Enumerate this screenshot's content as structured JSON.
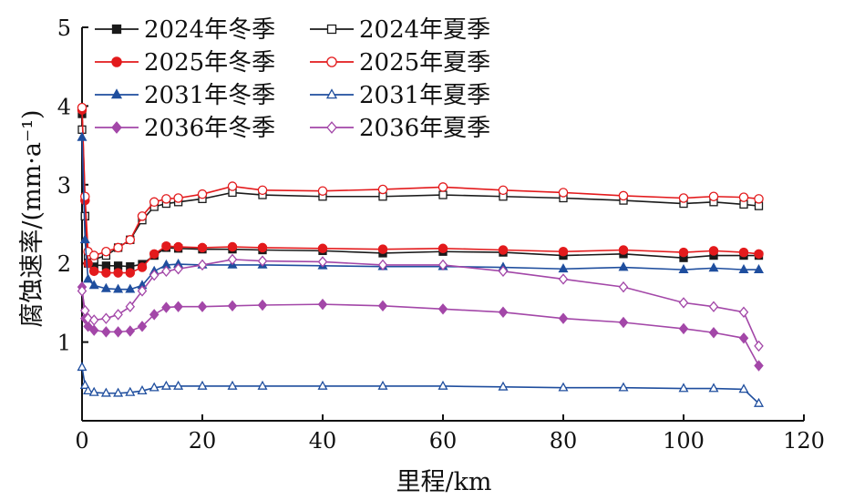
{
  "chart_data": {
    "type": "line",
    "xlabel": "里程/km",
    "ylabel": "腐蚀速率/(mm·a⁻¹)",
    "xlim": [
      0,
      120
    ],
    "ylim": [
      0,
      5
    ],
    "xticks": [
      "0",
      "20",
      "40",
      "60",
      "80",
      "100",
      "120"
    ],
    "yticks": [
      "1",
      "2",
      "3",
      "4",
      "5"
    ],
    "grid": false,
    "legend_position": "top-left",
    "series": [
      {
        "name": "2024年冬季",
        "color": "#1a1a1a",
        "marker": "square",
        "filled": true,
        "x": [
          0,
          0.5,
          1,
          2,
          4,
          6,
          8,
          10,
          12,
          14,
          16,
          20,
          25,
          30,
          40,
          50,
          60,
          70,
          80,
          90,
          100,
          105,
          110,
          112.5
        ],
        "y": [
          3.9,
          2.6,
          2.0,
          1.98,
          1.97,
          1.97,
          1.96,
          1.99,
          2.1,
          2.2,
          2.19,
          2.18,
          2.18,
          2.17,
          2.16,
          2.13,
          2.15,
          2.14,
          2.1,
          2.12,
          2.07,
          2.1,
          2.1,
          2.1
        ]
      },
      {
        "name": "2024年夏季",
        "color": "#1a1a1a",
        "marker": "square",
        "filled": false,
        "x": [
          0,
          0.5,
          1,
          2,
          4,
          6,
          8,
          10,
          12,
          14,
          16,
          20,
          25,
          30,
          40,
          50,
          60,
          70,
          80,
          90,
          100,
          105,
          110,
          112.5
        ],
        "y": [
          3.7,
          2.6,
          2.1,
          2.05,
          2.1,
          2.2,
          2.3,
          2.55,
          2.72,
          2.76,
          2.78,
          2.82,
          2.9,
          2.87,
          2.85,
          2.85,
          2.87,
          2.85,
          2.83,
          2.8,
          2.76,
          2.78,
          2.75,
          2.73
        ]
      },
      {
        "name": "2025年冬季",
        "color": "#e31a1c",
        "marker": "circle",
        "filled": true,
        "x": [
          0,
          0.5,
          1,
          2,
          4,
          6,
          8,
          10,
          12,
          14,
          16,
          20,
          25,
          30,
          40,
          50,
          60,
          70,
          80,
          90,
          100,
          105,
          110,
          112.5
        ],
        "y": [
          3.95,
          2.8,
          2.0,
          1.9,
          1.88,
          1.88,
          1.88,
          1.95,
          2.12,
          2.22,
          2.21,
          2.2,
          2.21,
          2.2,
          2.19,
          2.18,
          2.19,
          2.17,
          2.15,
          2.17,
          2.14,
          2.16,
          2.14,
          2.12
        ]
      },
      {
        "name": "2025年夏季",
        "color": "#e31a1c",
        "marker": "circle",
        "filled": false,
        "x": [
          0,
          0.5,
          1,
          2,
          4,
          6,
          8,
          10,
          12,
          14,
          16,
          20,
          25,
          30,
          40,
          50,
          60,
          70,
          80,
          90,
          100,
          105,
          110,
          112.5
        ],
        "y": [
          3.98,
          2.85,
          2.15,
          2.1,
          2.15,
          2.2,
          2.3,
          2.6,
          2.78,
          2.82,
          2.83,
          2.88,
          2.98,
          2.93,
          2.92,
          2.94,
          2.97,
          2.93,
          2.9,
          2.86,
          2.83,
          2.85,
          2.84,
          2.82
        ]
      },
      {
        "name": "2031年冬季",
        "color": "#1f4e9e",
        "marker": "triangle",
        "filled": true,
        "x": [
          0,
          0.5,
          1,
          2,
          4,
          6,
          8,
          10,
          12,
          14,
          16,
          20,
          25,
          30,
          40,
          50,
          60,
          70,
          80,
          90,
          100,
          105,
          110,
          112.5
        ],
        "y": [
          3.6,
          2.3,
          1.8,
          1.72,
          1.68,
          1.67,
          1.67,
          1.72,
          1.9,
          1.98,
          1.99,
          1.98,
          1.98,
          1.98,
          1.97,
          1.96,
          1.96,
          1.95,
          1.93,
          1.95,
          1.92,
          1.94,
          1.92,
          1.92
        ]
      },
      {
        "name": "2031年夏季",
        "color": "#1f4e9e",
        "marker": "triangle",
        "filled": false,
        "x": [
          0,
          0.5,
          1,
          2,
          4,
          6,
          8,
          10,
          12,
          14,
          16,
          20,
          25,
          30,
          40,
          50,
          60,
          70,
          80,
          90,
          100,
          105,
          110,
          112.5
        ],
        "y": [
          0.68,
          0.45,
          0.38,
          0.36,
          0.35,
          0.35,
          0.36,
          0.38,
          0.42,
          0.44,
          0.44,
          0.44,
          0.44,
          0.44,
          0.44,
          0.44,
          0.44,
          0.43,
          0.42,
          0.42,
          0.41,
          0.41,
          0.4,
          0.22
        ]
      },
      {
        "name": "2036年冬季",
        "color": "#a347a8",
        "marker": "diamond",
        "filled": true,
        "x": [
          0,
          0.5,
          1,
          2,
          4,
          6,
          8,
          10,
          12,
          14,
          16,
          20,
          25,
          30,
          40,
          50,
          60,
          70,
          80,
          90,
          100,
          105,
          110,
          112.5
        ],
        "y": [
          1.7,
          1.3,
          1.2,
          1.15,
          1.13,
          1.13,
          1.14,
          1.2,
          1.35,
          1.44,
          1.45,
          1.45,
          1.46,
          1.47,
          1.48,
          1.46,
          1.42,
          1.38,
          1.3,
          1.25,
          1.17,
          1.12,
          1.05,
          0.7
        ]
      },
      {
        "name": "2036年夏季",
        "color": "#a347a8",
        "marker": "diamond",
        "filled": false,
        "x": [
          0,
          0.5,
          1,
          2,
          4,
          6,
          8,
          10,
          12,
          14,
          16,
          20,
          25,
          30,
          40,
          50,
          60,
          70,
          80,
          90,
          100,
          105,
          110,
          112.5
        ],
        "y": [
          1.65,
          1.4,
          1.3,
          1.28,
          1.3,
          1.35,
          1.45,
          1.65,
          1.85,
          1.9,
          1.93,
          1.98,
          2.05,
          2.03,
          2.02,
          1.98,
          1.98,
          1.9,
          1.8,
          1.7,
          1.5,
          1.45,
          1.38,
          0.95
        ]
      }
    ]
  }
}
